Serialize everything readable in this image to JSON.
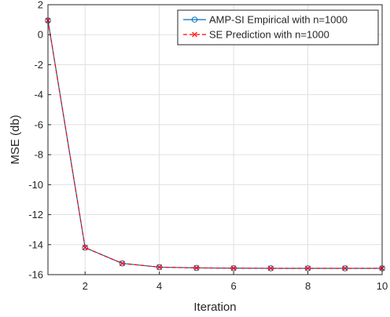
{
  "chart_data": {
    "type": "line",
    "xlabel": "Iteration",
    "ylabel": "MSE (db)",
    "xlim": [
      1,
      10
    ],
    "ylim": [
      -16,
      2
    ],
    "xticks": [
      2,
      4,
      6,
      8,
      10
    ],
    "yticks": [
      2,
      0,
      -2,
      -4,
      -6,
      -8,
      -10,
      -12,
      -14,
      -16
    ],
    "grid": true,
    "legend": "top-right",
    "x": [
      1,
      2,
      3,
      4,
      5,
      6,
      7,
      8,
      9,
      10
    ],
    "series": [
      {
        "name": "AMP-SI Empirical with n=1000",
        "color": "#0072BD",
        "marker": "circle",
        "line": "solid",
        "values": [
          0.95,
          -14.2,
          -15.25,
          -15.5,
          -15.55,
          -15.57,
          -15.58,
          -15.58,
          -15.58,
          -15.58
        ]
      },
      {
        "name": "SE Prediction with n=1000",
        "color": "#FF0000",
        "marker": "x",
        "line": "dashed",
        "values": [
          0.95,
          -14.2,
          -15.25,
          -15.5,
          -15.55,
          -15.57,
          -15.58,
          -15.58,
          -15.58,
          -15.58
        ]
      }
    ]
  }
}
